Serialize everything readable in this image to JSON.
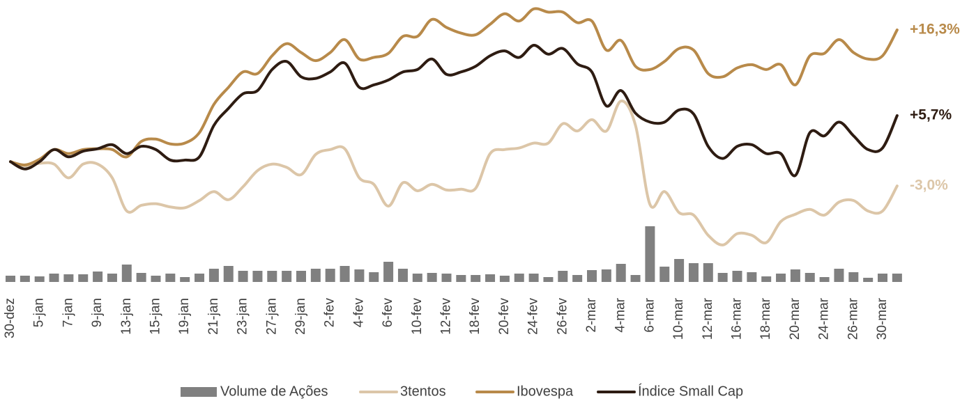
{
  "chart_data": {
    "type": "line",
    "categories": [
      "30-dez",
      null,
      "5-jan",
      null,
      "7-jan",
      null,
      "9-jan",
      null,
      "13-jan",
      null,
      "15-jan",
      null,
      "19-jan",
      null,
      "21-jan",
      null,
      "23-jan",
      null,
      "27-jan",
      null,
      "29-jan",
      null,
      "2-fev",
      null,
      "4-fev",
      null,
      "6-fev",
      null,
      "10-fev",
      null,
      "12-fev",
      null,
      "18-fev",
      null,
      "20-fev",
      null,
      "24-fev",
      null,
      "26-fev",
      null,
      "2-mar",
      null,
      "4-mar",
      null,
      "6-mar",
      null,
      "10-mar",
      null,
      "12-mar",
      null,
      "16-mar",
      null,
      "18-mar",
      null,
      "20-mar",
      null,
      "24-mar",
      null,
      "26-mar",
      null,
      "30-mar",
      null
    ],
    "ylim": [
      -11,
      20
    ],
    "y2lim": [
      0,
      100
    ],
    "series": [
      {
        "name": "Volume de Ações",
        "type": "bar",
        "axis": "y2",
        "color": "#808080",
        "values": [
          9,
          9,
          8,
          12,
          11,
          11,
          15,
          12,
          25,
          13,
          9,
          12,
          7,
          12,
          19,
          23,
          16,
          16,
          16,
          16,
          16,
          19,
          19,
          23,
          18,
          14,
          29,
          19,
          12,
          13,
          12,
          10,
          10,
          11,
          9,
          12,
          12,
          7,
          16,
          10,
          17,
          18,
          26,
          10,
          80,
          22,
          33,
          27,
          27,
          13,
          16,
          14,
          8,
          12,
          18,
          13,
          7,
          19,
          14,
          6,
          12,
          12
        ]
      },
      {
        "name": "3tentos",
        "type": "line",
        "color": "#dcc6a8",
        "end_label": "-3,0%",
        "values": [
          0,
          -0.5,
          -0.2,
          -0.3,
          -2.0,
          -0.3,
          -0.3,
          -2.0,
          -6.1,
          -5.4,
          -5.2,
          -5.6,
          -5.7,
          -4.8,
          -3.7,
          -4.7,
          -3.1,
          -1.1,
          -0.3,
          -0.7,
          -1.6,
          0.9,
          1.5,
          1.6,
          -2.0,
          -2.8,
          -5.5,
          -2.6,
          -3.6,
          -2.8,
          -3.5,
          -3.4,
          -3.3,
          1.0,
          1.5,
          1.7,
          2.3,
          2.3,
          4.7,
          3.8,
          5.2,
          3.8,
          7.5,
          4.5,
          -5.3,
          -3.7,
          -6.3,
          -6.6,
          -9.1,
          -10.3,
          -8.9,
          -9.1,
          -10.0,
          -7.4,
          -6.5,
          -5.9,
          -6.6,
          -5.0,
          -4.8,
          -6.1,
          -6.1,
          -3.0
        ]
      },
      {
        "name": "Ibovespa",
        "type": "line",
        "color": "#b88a4a",
        "end_label": "+16,3%",
        "values": [
          0,
          -0.4,
          0.3,
          1.5,
          1.0,
          1.5,
          1.6,
          1.5,
          0.6,
          2.5,
          2.8,
          2.2,
          2.3,
          3.6,
          7.1,
          9.2,
          11.1,
          10.9,
          13.1,
          14.6,
          13.5,
          12.5,
          13.5,
          15.1,
          12.7,
          12.9,
          13.4,
          15.5,
          15.5,
          17.6,
          16.6,
          15.9,
          15.7,
          17.0,
          18.3,
          17.4,
          18.9,
          18.5,
          18.5,
          17.2,
          17.4,
          13.8,
          15.0,
          11.8,
          11.4,
          12.4,
          14.0,
          13.8,
          10.9,
          10.5,
          11.6,
          12.0,
          11.4,
          12.0,
          9.5,
          13.1,
          13.4,
          15.1,
          13.5,
          12.7,
          13.1,
          16.3
        ]
      },
      {
        "name": "Índice Small Cap",
        "type": "line",
        "color": "#2e1c12",
        "end_label": "+5,7%",
        "values": [
          0,
          -0.9,
          0,
          1.5,
          0.6,
          1.3,
          1.6,
          2.1,
          1.0,
          1.9,
          1.5,
          0.2,
          0.2,
          0.6,
          4.5,
          6.6,
          8.4,
          8.8,
          11.4,
          12.4,
          10.5,
          10.3,
          11.1,
          12.2,
          9.2,
          9.5,
          10.1,
          11.1,
          11.4,
          12.7,
          10.8,
          11.1,
          11.8,
          13.1,
          13.7,
          12.9,
          14.4,
          13.3,
          14.0,
          12.1,
          11.1,
          6.9,
          8.8,
          6.0,
          4.9,
          4.9,
          6.4,
          5.9,
          1.9,
          0.4,
          1.9,
          2.1,
          1.0,
          1.0,
          -1.7,
          3.6,
          3.2,
          4.9,
          3.2,
          1.5,
          1.7,
          5.7
        ]
      }
    ]
  }
}
